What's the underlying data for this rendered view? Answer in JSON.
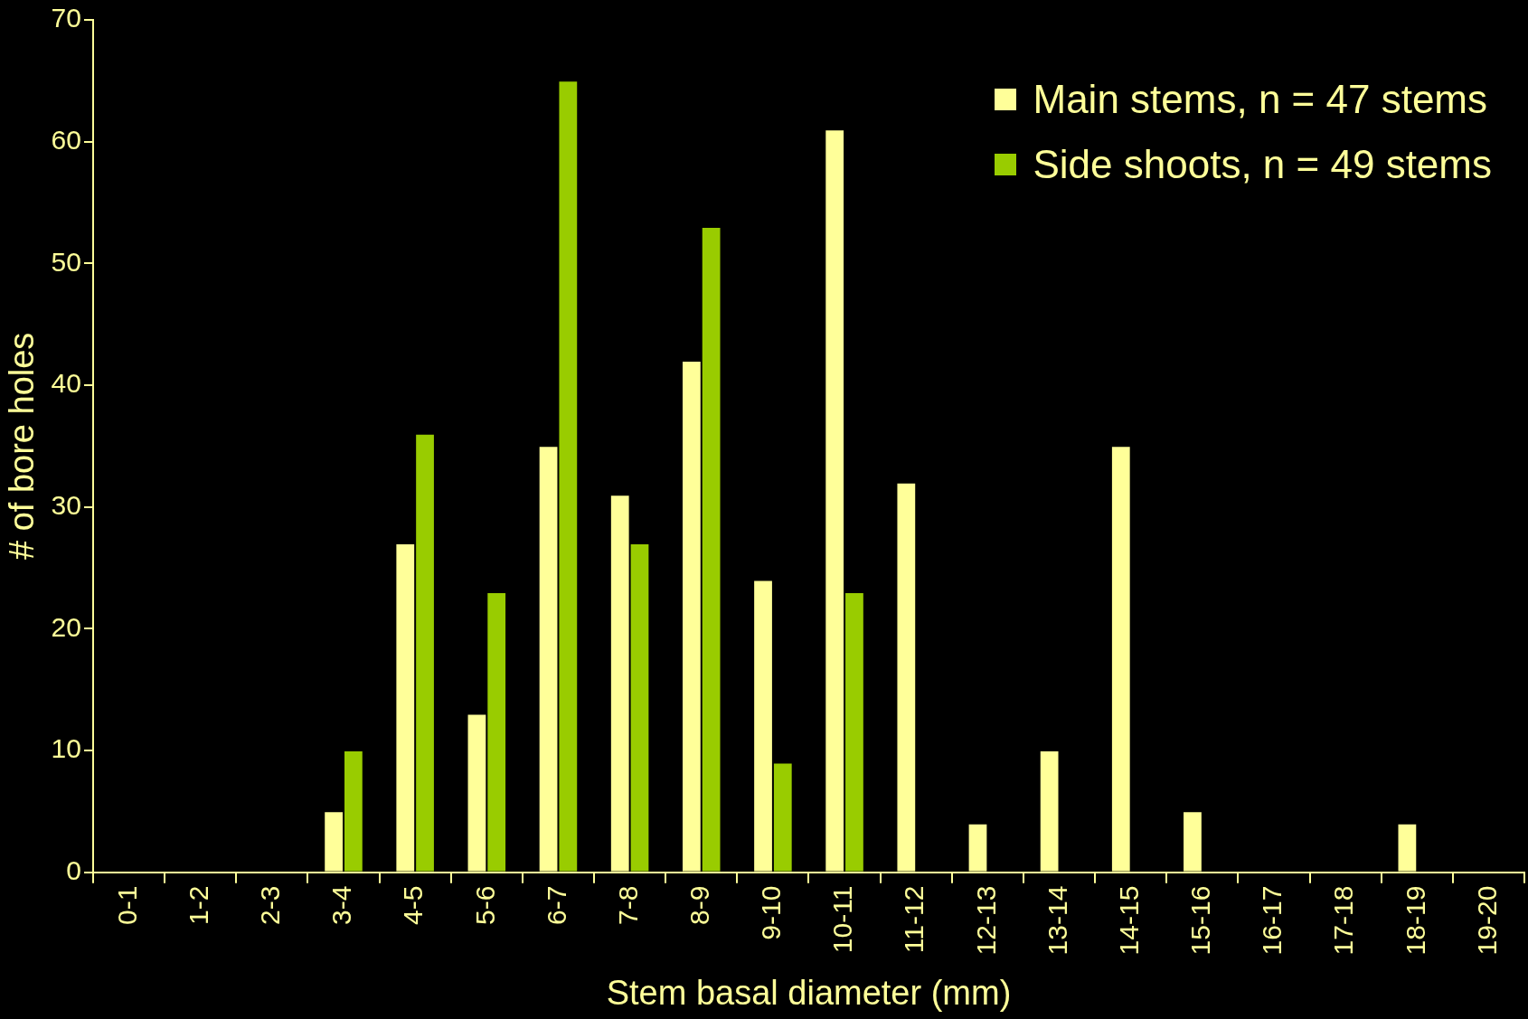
{
  "chart_data": {
    "type": "bar",
    "xlabel": "Stem basal diameter (mm)",
    "ylabel": "# of bore holes",
    "categories": [
      "0-1",
      "1-2",
      "2-3",
      "3-4",
      "4-5",
      "5-6",
      "6-7",
      "7-8",
      "8-9",
      "9-10",
      "10-11",
      "11-12",
      "12-13",
      "13-14",
      "14-15",
      "15-16",
      "16-17",
      "17-18",
      "18-19",
      "19-20"
    ],
    "series": [
      {
        "name": "Main stems, n = 47 stems",
        "color": "#ffff99",
        "values": [
          0,
          0,
          0,
          5,
          27,
          13,
          35,
          31,
          42,
          24,
          61,
          32,
          4,
          10,
          35,
          5,
          0,
          0,
          4,
          0
        ]
      },
      {
        "name": "Side shoots, n = 49 stems",
        "color": "#99cc00",
        "values": [
          0,
          0,
          0,
          10,
          36,
          23,
          65,
          27,
          53,
          9,
          23,
          0,
          0,
          0,
          0,
          0,
          0,
          0,
          0,
          0
        ]
      }
    ],
    "ylim": [
      0,
      70
    ],
    "yticks": [
      0,
      10,
      20,
      30,
      40,
      50,
      60,
      70
    ],
    "grid": false,
    "legend": "top right"
  }
}
